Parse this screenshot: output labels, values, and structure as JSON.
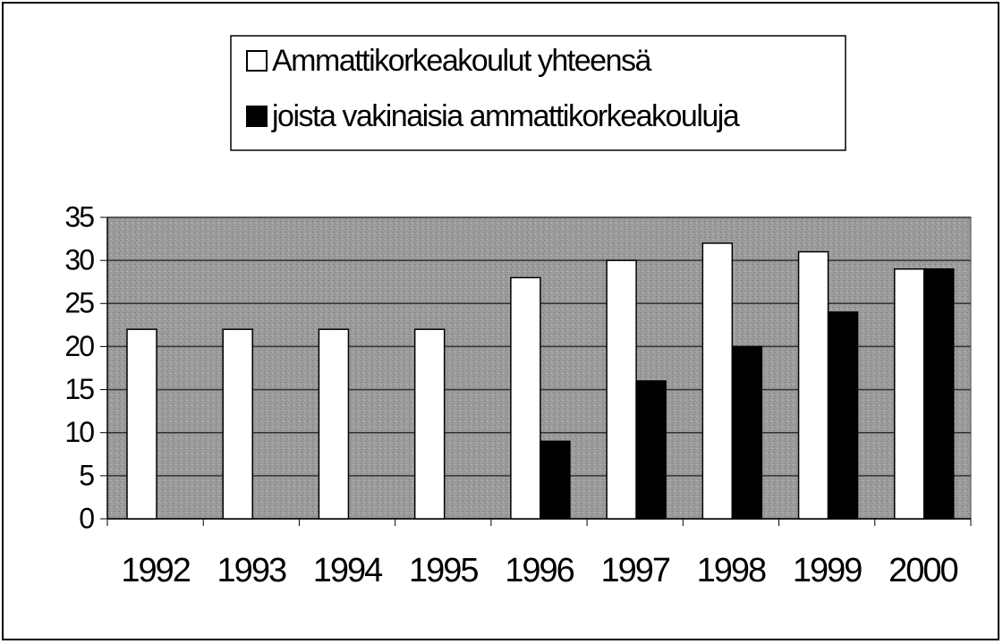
{
  "chart_data": {
    "type": "bar",
    "categories": [
      "1992",
      "1993",
      "1994",
      "1995",
      "1996",
      "1997",
      "1998",
      "1999",
      "2000"
    ],
    "series": [
      {
        "name": "Ammattikorkeakoulut yhteensä",
        "color": "#ffffff",
        "values": [
          22,
          22,
          22,
          22,
          28,
          30,
          32,
          31,
          29
        ]
      },
      {
        "name": "joista vakinaisia ammattikorkeakouluja",
        "color": "#000000",
        "values": [
          0,
          0,
          0,
          0,
          9,
          16,
          20,
          24,
          29
        ]
      }
    ],
    "ylim": [
      0,
      35
    ],
    "yticks": [
      0,
      5,
      10,
      15,
      20,
      25,
      30,
      35
    ],
    "grid": true,
    "legend": "top"
  }
}
